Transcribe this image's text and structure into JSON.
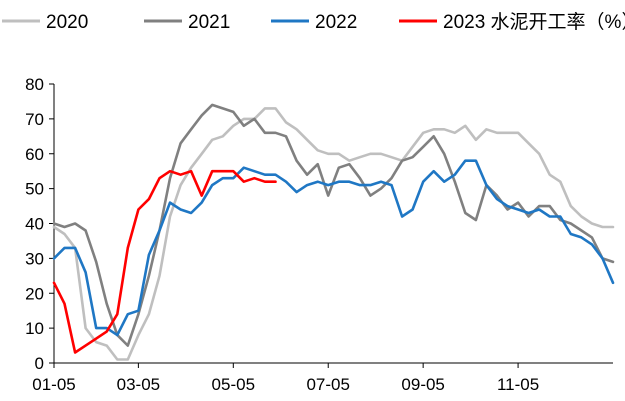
{
  "chart_data": {
    "type": "line",
    "title": "",
    "unit": "%",
    "xlabel": "",
    "ylabel": "",
    "ylim": [
      0,
      80
    ],
    "yticks": [
      0,
      10,
      20,
      30,
      40,
      50,
      60,
      70,
      80
    ],
    "x_tick_labels": [
      "01-05",
      "03-05",
      "05-05",
      "07-05",
      "09-05",
      "11-05"
    ],
    "x_tick_weeks": [
      1,
      9,
      18,
      27,
      36,
      45
    ],
    "x_range": [
      1,
      54
    ],
    "grid": false,
    "legend_position": "top",
    "series": [
      {
        "name": "2020",
        "color": "#bfbfbf",
        "x": [
          1,
          2,
          3,
          4,
          5,
          6,
          7,
          8,
          9,
          10,
          11,
          12,
          13,
          14,
          15,
          16,
          17,
          18,
          19,
          20,
          21,
          22,
          23,
          24,
          25,
          26,
          27,
          28,
          29,
          30,
          31,
          32,
          33,
          34,
          35,
          36,
          37,
          38,
          39,
          40,
          41,
          42,
          43,
          44,
          45,
          46,
          47,
          48,
          49,
          50,
          51,
          52,
          53,
          54
        ],
        "values": [
          39,
          37,
          33,
          10,
          6,
          5,
          1,
          1,
          8,
          14,
          25,
          42,
          51,
          56,
          60,
          64,
          65,
          68,
          70,
          70,
          73,
          73,
          69,
          67,
          64,
          61,
          60,
          60,
          58,
          59,
          60,
          60,
          59,
          58,
          62,
          66,
          67,
          67,
          66,
          68,
          64,
          67,
          66,
          66,
          66,
          63,
          60,
          54,
          52,
          45,
          42,
          40,
          39,
          39
        ]
      },
      {
        "name": "2021",
        "color": "#808080",
        "x": [
          1,
          2,
          3,
          4,
          5,
          6,
          7,
          8,
          9,
          10,
          11,
          12,
          13,
          14,
          15,
          16,
          17,
          18,
          19,
          20,
          21,
          22,
          23,
          24,
          25,
          26,
          27,
          28,
          29,
          30,
          31,
          32,
          33,
          34,
          35,
          36,
          37,
          38,
          39,
          40,
          41,
          42,
          43,
          44,
          45,
          46,
          47,
          48,
          49,
          50,
          51,
          52,
          53,
          54
        ],
        "values": [
          40,
          39,
          40,
          38,
          29,
          17,
          8,
          5,
          14,
          25,
          38,
          53,
          63,
          67,
          71,
          74,
          73,
          72,
          68,
          70,
          66,
          66,
          65,
          58,
          54,
          57,
          48,
          56,
          57,
          53,
          48,
          50,
          53,
          58,
          59,
          62,
          65,
          60,
          52,
          43,
          41,
          51,
          48,
          44,
          46,
          42,
          45,
          45,
          41,
          40,
          38,
          36,
          30,
          29
        ]
      },
      {
        "name": "2022",
        "color": "#1f77c4",
        "x": [
          1,
          2,
          3,
          4,
          5,
          6,
          7,
          8,
          9,
          10,
          11,
          12,
          13,
          14,
          15,
          16,
          17,
          18,
          19,
          20,
          21,
          22,
          23,
          24,
          25,
          26,
          27,
          28,
          29,
          30,
          31,
          32,
          33,
          34,
          35,
          36,
          37,
          38,
          39,
          40,
          41,
          42,
          43,
          44,
          45,
          46,
          47,
          48,
          49,
          50,
          51,
          52,
          53,
          54
        ],
        "values": [
          30,
          33,
          33,
          26,
          10,
          10,
          8,
          14,
          15,
          31,
          38,
          46,
          44,
          43,
          46,
          51,
          53,
          53,
          56,
          55,
          54,
          54,
          52,
          49,
          51,
          52,
          51,
          52,
          52,
          51,
          51,
          52,
          51,
          42,
          44,
          52,
          55,
          52,
          54,
          58,
          58,
          51,
          47,
          45,
          44,
          43,
          44,
          42,
          42,
          37,
          36,
          34,
          30,
          23
        ]
      },
      {
        "name": "2023",
        "color": "#ff0000",
        "x": [
          1,
          2,
          3,
          4,
          5,
          6,
          7,
          8,
          9,
          10,
          11,
          12,
          13,
          14,
          15,
          16,
          17,
          18,
          19,
          20,
          21,
          22
        ],
        "values": [
          23,
          17,
          3,
          5,
          7,
          9,
          14,
          33,
          44,
          47,
          53,
          55,
          54,
          55,
          48,
          55,
          55,
          55,
          52,
          53,
          52,
          52
        ]
      }
    ],
    "legend": [
      {
        "label": "2020",
        "series": 0
      },
      {
        "label": "2021",
        "series": 1
      },
      {
        "label": "2022",
        "series": 2
      },
      {
        "label": "2023 水泥开工率（%）",
        "series": 3
      }
    ]
  }
}
